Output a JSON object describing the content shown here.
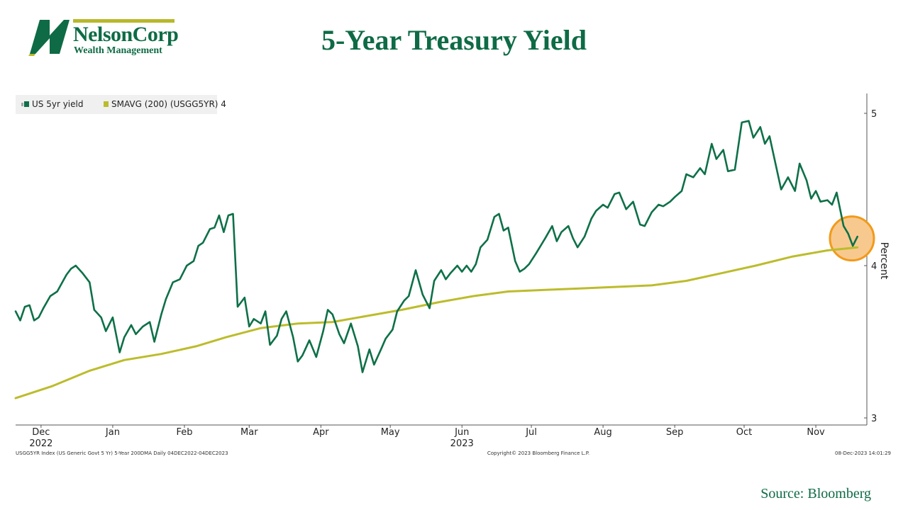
{
  "logo": {
    "name": "NelsonCorp",
    "subtitle": "Wealth Management"
  },
  "page_title": "5-Year Treasury Yield",
  "source": "Source: Bloomberg",
  "colors": {
    "yield": "#0e7048",
    "sma": "#bcbc2c",
    "brand": "#0e6b45",
    "highlight_fill": "#f7c98f",
    "highlight_stroke": "#f29a1a"
  },
  "footer": {
    "left": "USGG5YR Index (US Generic Govt 5 Yr) 5-Year 200DMA  Daily 04DEC2022-04DEC2023",
    "center": "Copyright© 2023 Bloomberg Finance L.P.",
    "right": "08-Dec-2023 14:01:29"
  },
  "chart_data": {
    "type": "line",
    "ylabel": "Percent",
    "ylim": [
      3,
      5.1
    ],
    "yticks": [
      "5",
      "4",
      "3"
    ],
    "ytick_values": [
      5,
      4,
      3
    ],
    "x_range": [
      "2022-12-04",
      "2023-12-04"
    ],
    "month_labels": [
      "Dec",
      "Jan",
      "Feb",
      "Mar",
      "Apr",
      "May",
      "Jun",
      "Jul",
      "Aug",
      "Sep",
      "Oct",
      "Nov"
    ],
    "month_dates": [
      "2022-12-15",
      "2023-01-15",
      "2023-02-15",
      "2023-03-15",
      "2023-04-15",
      "2023-05-15",
      "2023-06-15",
      "2023-07-15",
      "2023-08-15",
      "2023-09-15",
      "2023-10-15",
      "2023-11-15"
    ],
    "year_labels": [
      {
        "label": "2022",
        "date": "2022-12-15"
      },
      {
        "label": "2023",
        "date": "2023-06-15"
      }
    ],
    "legend": {
      "placement": "top-left",
      "entries": [
        "US 5yr yield",
        "SMAVG (200) (USGG5YR) 4"
      ]
    },
    "grid": false,
    "series": [
      {
        "name": "US 5yr yield",
        "points": [
          [
            "2022-12-04",
            3.7
          ],
          [
            "2022-12-06",
            3.64
          ],
          [
            "2022-12-08",
            3.73
          ],
          [
            "2022-12-10",
            3.74
          ],
          [
            "2022-12-12",
            3.64
          ],
          [
            "2022-12-14",
            3.66
          ],
          [
            "2022-12-16",
            3.72
          ],
          [
            "2022-12-19",
            3.8
          ],
          [
            "2022-12-22",
            3.83
          ],
          [
            "2022-12-26",
            3.94
          ],
          [
            "2022-12-28",
            3.98
          ],
          [
            "2022-12-30",
            4.0
          ],
          [
            "2023-01-02",
            3.95
          ],
          [
            "2023-01-05",
            3.89
          ],
          [
            "2023-01-07",
            3.71
          ],
          [
            "2023-01-10",
            3.66
          ],
          [
            "2023-01-12",
            3.57
          ],
          [
            "2023-01-15",
            3.66
          ],
          [
            "2023-01-18",
            3.43
          ],
          [
            "2023-01-20",
            3.53
          ],
          [
            "2023-01-23",
            3.61
          ],
          [
            "2023-01-25",
            3.55
          ],
          [
            "2023-01-28",
            3.6
          ],
          [
            "2023-01-31",
            3.63
          ],
          [
            "2023-02-02",
            3.5
          ],
          [
            "2023-02-05",
            3.68
          ],
          [
            "2023-02-07",
            3.78
          ],
          [
            "2023-02-10",
            3.89
          ],
          [
            "2023-02-13",
            3.91
          ],
          [
            "2023-02-16",
            4.0
          ],
          [
            "2023-02-19",
            4.03
          ],
          [
            "2023-02-21",
            4.13
          ],
          [
            "2023-02-23",
            4.15
          ],
          [
            "2023-02-26",
            4.24
          ],
          [
            "2023-02-28",
            4.25
          ],
          [
            "2023-03-02",
            4.33
          ],
          [
            "2023-03-04",
            4.22
          ],
          [
            "2023-03-06",
            4.33
          ],
          [
            "2023-03-08",
            4.34
          ],
          [
            "2023-03-10",
            3.73
          ],
          [
            "2023-03-13",
            3.79
          ],
          [
            "2023-03-15",
            3.6
          ],
          [
            "2023-03-17",
            3.65
          ],
          [
            "2023-03-20",
            3.62
          ],
          [
            "2023-03-22",
            3.7
          ],
          [
            "2023-03-24",
            3.48
          ],
          [
            "2023-03-27",
            3.54
          ],
          [
            "2023-03-29",
            3.65
          ],
          [
            "2023-03-31",
            3.7
          ],
          [
            "2023-04-03",
            3.53
          ],
          [
            "2023-04-05",
            3.37
          ],
          [
            "2023-04-07",
            3.41
          ],
          [
            "2023-04-10",
            3.51
          ],
          [
            "2023-04-13",
            3.4
          ],
          [
            "2023-04-16",
            3.57
          ],
          [
            "2023-04-18",
            3.71
          ],
          [
            "2023-04-20",
            3.68
          ],
          [
            "2023-04-23",
            3.55
          ],
          [
            "2023-04-25",
            3.49
          ],
          [
            "2023-04-28",
            3.62
          ],
          [
            "2023-05-01",
            3.47
          ],
          [
            "2023-05-03",
            3.3
          ],
          [
            "2023-05-06",
            3.45
          ],
          [
            "2023-05-08",
            3.35
          ],
          [
            "2023-05-11",
            3.45
          ],
          [
            "2023-05-13",
            3.52
          ],
          [
            "2023-05-16",
            3.58
          ],
          [
            "2023-05-18",
            3.7
          ],
          [
            "2023-05-21",
            3.77
          ],
          [
            "2023-05-23",
            3.8
          ],
          [
            "2023-05-26",
            3.97
          ],
          [
            "2023-05-29",
            3.81
          ],
          [
            "2023-06-01",
            3.72
          ],
          [
            "2023-06-03",
            3.9
          ],
          [
            "2023-06-06",
            3.97
          ],
          [
            "2023-06-08",
            3.91
          ],
          [
            "2023-06-10",
            3.95
          ],
          [
            "2023-06-13",
            4.0
          ],
          [
            "2023-06-15",
            3.96
          ],
          [
            "2023-06-17",
            4.0
          ],
          [
            "2023-06-19",
            3.96
          ],
          [
            "2023-06-21",
            4.01
          ],
          [
            "2023-06-23",
            4.12
          ],
          [
            "2023-06-26",
            4.17
          ],
          [
            "2023-06-29",
            4.32
          ],
          [
            "2023-07-01",
            4.34
          ],
          [
            "2023-07-03",
            4.23
          ],
          [
            "2023-07-05",
            4.25
          ],
          [
            "2023-07-08",
            4.03
          ],
          [
            "2023-07-10",
            3.96
          ],
          [
            "2023-07-12",
            3.98
          ],
          [
            "2023-07-14",
            4.01
          ],
          [
            "2023-07-17",
            4.08
          ],
          [
            "2023-07-19",
            4.13
          ],
          [
            "2023-07-21",
            4.18
          ],
          [
            "2023-07-24",
            4.26
          ],
          [
            "2023-07-26",
            4.16
          ],
          [
            "2023-07-28",
            4.22
          ],
          [
            "2023-07-31",
            4.26
          ],
          [
            "2023-08-02",
            4.18
          ],
          [
            "2023-08-04",
            4.12
          ],
          [
            "2023-08-07",
            4.19
          ],
          [
            "2023-08-10",
            4.31
          ],
          [
            "2023-08-12",
            4.36
          ],
          [
            "2023-08-15",
            4.4
          ],
          [
            "2023-08-17",
            4.38
          ],
          [
            "2023-08-20",
            4.47
          ],
          [
            "2023-08-22",
            4.48
          ],
          [
            "2023-08-25",
            4.37
          ],
          [
            "2023-08-28",
            4.42
          ],
          [
            "2023-08-31",
            4.27
          ],
          [
            "2023-09-02",
            4.26
          ],
          [
            "2023-09-05",
            4.35
          ],
          [
            "2023-09-08",
            4.4
          ],
          [
            "2023-09-10",
            4.39
          ],
          [
            "2023-09-13",
            4.42
          ],
          [
            "2023-09-15",
            4.45
          ],
          [
            "2023-09-18",
            4.49
          ],
          [
            "2023-09-20",
            4.6
          ],
          [
            "2023-09-23",
            4.58
          ],
          [
            "2023-09-26",
            4.64
          ],
          [
            "2023-09-28",
            4.6
          ],
          [
            "2023-10-01",
            4.8
          ],
          [
            "2023-10-03",
            4.7
          ],
          [
            "2023-10-06",
            4.76
          ],
          [
            "2023-10-08",
            4.62
          ],
          [
            "2023-10-11",
            4.63
          ],
          [
            "2023-10-14",
            4.94
          ],
          [
            "2023-10-17",
            4.95
          ],
          [
            "2023-10-19",
            4.84
          ],
          [
            "2023-10-22",
            4.91
          ],
          [
            "2023-10-24",
            4.8
          ],
          [
            "2023-10-26",
            4.85
          ],
          [
            "2023-10-29",
            4.64
          ],
          [
            "2023-10-31",
            4.5
          ],
          [
            "2023-11-03",
            4.58
          ],
          [
            "2023-11-06",
            4.49
          ],
          [
            "2023-11-08",
            4.67
          ],
          [
            "2023-11-11",
            4.56
          ],
          [
            "2023-11-13",
            4.44
          ],
          [
            "2023-11-15",
            4.49
          ],
          [
            "2023-11-17",
            4.42
          ],
          [
            "2023-11-20",
            4.43
          ],
          [
            "2023-11-22",
            4.4
          ],
          [
            "2023-11-24",
            4.48
          ],
          [
            "2023-11-27",
            4.26
          ],
          [
            "2023-11-29",
            4.21
          ],
          [
            "2023-12-01",
            4.13
          ],
          [
            "2023-12-03",
            4.19
          ]
        ]
      },
      {
        "name": "SMAVG (200) (USGG5YR) 4",
        "points": [
          [
            "2022-12-04",
            3.13
          ],
          [
            "2022-12-20",
            3.21
          ],
          [
            "2023-01-05",
            3.31
          ],
          [
            "2023-01-20",
            3.38
          ],
          [
            "2023-02-05",
            3.42
          ],
          [
            "2023-02-20",
            3.47
          ],
          [
            "2023-03-05",
            3.53
          ],
          [
            "2023-03-20",
            3.59
          ],
          [
            "2023-04-05",
            3.62
          ],
          [
            "2023-04-20",
            3.63
          ],
          [
            "2023-05-05",
            3.67
          ],
          [
            "2023-05-20",
            3.71
          ],
          [
            "2023-06-05",
            3.76
          ],
          [
            "2023-06-20",
            3.8
          ],
          [
            "2023-07-05",
            3.83
          ],
          [
            "2023-07-20",
            3.84
          ],
          [
            "2023-08-05",
            3.85
          ],
          [
            "2023-08-20",
            3.86
          ],
          [
            "2023-09-05",
            3.87
          ],
          [
            "2023-09-20",
            3.9
          ],
          [
            "2023-10-05",
            3.95
          ],
          [
            "2023-10-20",
            4.0
          ],
          [
            "2023-11-05",
            4.06
          ],
          [
            "2023-11-20",
            4.1
          ],
          [
            "2023-12-03",
            4.12
          ]
        ]
      }
    ],
    "highlight": {
      "date": "2023-11-30",
      "value": 4.16,
      "radius_pct": 0.15
    }
  }
}
